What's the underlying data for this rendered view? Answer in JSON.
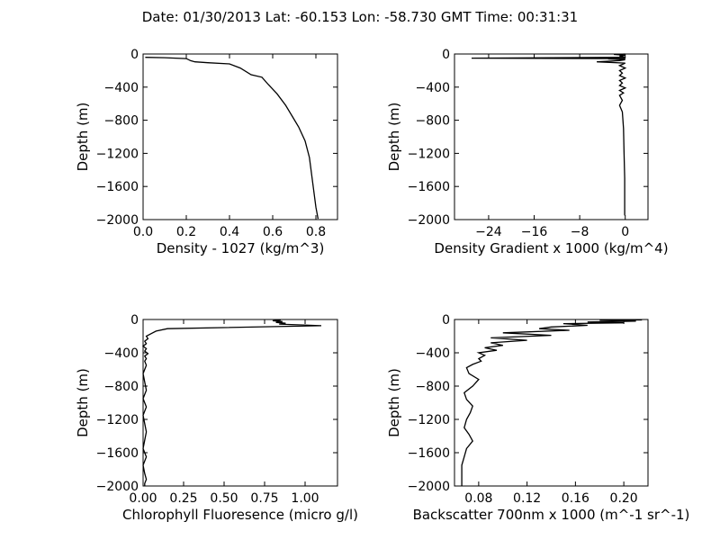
{
  "figure_title": "Date: 01/30/2013  Lat:  -60.153 Lon:  -58.730  GMT Time: 00:31:31",
  "chart_data": [
    {
      "type": "line",
      "xlabel": "Density - 1027 (kg/m^3)",
      "ylabel": "Depth (m)",
      "xlim": [
        0.0,
        0.9
      ],
      "ylim": [
        -2000,
        0
      ],
      "xticks": [
        0.0,
        0.2,
        0.4,
        0.6,
        0.8
      ],
      "xtick_labels": [
        "0.0",
        "0.2",
        "0.4",
        "0.6",
        "0.8"
      ],
      "yticks": [
        0,
        -400,
        -800,
        -1200,
        -1600,
        -2000
      ],
      "ytick_labels": [
        "0",
        "−400",
        "−800",
        "−1200",
        "−1600",
        "−2000"
      ],
      "series": [
        {
          "x": [
            0.01,
            0.1,
            0.2,
            0.22,
            0.24,
            0.3,
            0.4,
            0.45,
            0.5,
            0.55,
            0.58,
            0.62,
            0.66,
            0.69,
            0.72,
            0.75,
            0.77,
            0.78,
            0.79,
            0.8,
            0.81
          ],
          "y": [
            -40,
            -45,
            -55,
            -80,
            -95,
            -105,
            -120,
            -170,
            -250,
            -280,
            -370,
            -480,
            -620,
            -750,
            -880,
            -1050,
            -1250,
            -1450,
            -1650,
            -1850,
            -1990
          ]
        }
      ]
    },
    {
      "type": "line",
      "xlabel": "Density Gradient x 1000 (kg/m^4)",
      "ylabel": "Depth (m)",
      "xlim": [
        -30,
        4
      ],
      "ylim": [
        -2000,
        0
      ],
      "xticks": [
        -24,
        -16,
        -8,
        0
      ],
      "xtick_labels": [
        "−24",
        "−16",
        "−8",
        "0"
      ],
      "yticks": [
        0,
        -400,
        -800,
        -1200,
        -1600,
        -2000
      ],
      "ytick_labels": [
        "0",
        "−400",
        "−800",
        "−1200",
        "−1600",
        "−2000"
      ],
      "series": [
        {
          "x": [
            0,
            -2,
            0,
            -1,
            0,
            -27,
            0,
            -3,
            0,
            -1,
            -5,
            0,
            -1,
            0,
            -1,
            -0.5,
            -1,
            0,
            -1,
            -0.5,
            -1,
            0,
            -1,
            -0.3,
            -1,
            -0.5,
            -1,
            -0.5,
            -0.3,
            -0.2,
            -0.1,
            -0.1,
            -0.1
          ],
          "y": [
            0,
            -5,
            -15,
            -25,
            -40,
            -50,
            -55,
            -60,
            -70,
            -80,
            -95,
            -110,
            -140,
            -170,
            -200,
            -230,
            -260,
            -290,
            -320,
            -350,
            -380,
            -410,
            -440,
            -470,
            -500,
            -560,
            -620,
            -700,
            -900,
            -1200,
            -1500,
            -1800,
            -1950
          ]
        }
      ]
    },
    {
      "type": "line",
      "xlabel": "Chlorophyll Fluoresence (micro g/l)",
      "ylabel": "Depth (m)",
      "xlim": [
        0.0,
        1.2
      ],
      "ylim": [
        -2000,
        0
      ],
      "xticks": [
        0.0,
        0.25,
        0.5,
        0.75,
        1.0
      ],
      "xtick_labels": [
        "0.00",
        "0.25",
        "0.50",
        "0.75",
        "1.00"
      ],
      "yticks": [
        0,
        -400,
        -800,
        -1200,
        -1600,
        -2000
      ],
      "ytick_labels": [
        "0",
        "−400",
        "−800",
        "−1200",
        "−1600",
        "−2000"
      ],
      "series": [
        {
          "x": [
            0.85,
            0.8,
            0.86,
            0.82,
            0.88,
            0.84,
            1.1,
            0.15,
            0.08,
            0.05,
            0.02,
            0.03,
            0.01,
            0.02,
            0.0,
            0.02,
            0.01,
            0.03,
            0.01,
            0.02,
            0.01,
            0.02,
            0.0,
            0.01,
            0.02,
            0.0,
            0.02,
            0.0,
            0.01,
            0.02,
            0.01,
            0.0,
            0.02,
            0.0,
            0.01,
            0.02,
            0.01,
            0.01
          ],
          "y": [
            -5,
            -15,
            -25,
            -35,
            -45,
            -55,
            -75,
            -110,
            -140,
            -170,
            -200,
            -230,
            -260,
            -290,
            -320,
            -350,
            -380,
            -410,
            -440,
            -470,
            -500,
            -550,
            -650,
            -750,
            -850,
            -950,
            -1050,
            -1150,
            -1250,
            -1350,
            -1450,
            -1550,
            -1650,
            -1750,
            -1850,
            -1920,
            -1970,
            -2000
          ]
        }
      ]
    },
    {
      "type": "line",
      "xlabel": "Backscatter 700nm x 1000 (m^-1 sr^-1)",
      "ylabel": "Depth (m)",
      "xlim": [
        0.06,
        0.22
      ],
      "ylim": [
        -2000,
        0
      ],
      "xticks": [
        0.08,
        0.12,
        0.16,
        0.2
      ],
      "xtick_labels": [
        "0.08",
        "0.12",
        "0.16",
        "0.20"
      ],
      "yticks": [
        0,
        -400,
        -800,
        -1200,
        -1600,
        -2000
      ],
      "ytick_labels": [
        "0",
        "−400",
        "−800",
        "−1200",
        "−1600",
        "−2000"
      ],
      "series": [
        {
          "x": [
            0.215,
            0.18,
            0.21,
            0.17,
            0.2,
            0.15,
            0.17,
            0.14,
            0.13,
            0.155,
            0.1,
            0.14,
            0.09,
            0.12,
            0.09,
            0.1,
            0.085,
            0.095,
            0.08,
            0.085,
            0.08,
            0.082,
            0.075,
            0.07,
            0.072,
            0.08,
            0.075,
            0.068,
            0.07,
            0.075,
            0.073,
            0.07,
            0.068,
            0.072,
            0.075,
            0.07,
            0.068,
            0.066,
            0.066,
            0.066
          ],
          "y": [
            -5,
            -10,
            -20,
            -30,
            -40,
            -50,
            -70,
            -90,
            -110,
            -130,
            -160,
            -190,
            -220,
            -250,
            -280,
            -310,
            -340,
            -370,
            -400,
            -430,
            -470,
            -500,
            -540,
            -580,
            -650,
            -720,
            -800,
            -880,
            -960,
            -1040,
            -1120,
            -1200,
            -1300,
            -1380,
            -1460,
            -1550,
            -1650,
            -1750,
            -1850,
            -2000
          ]
        }
      ]
    }
  ]
}
